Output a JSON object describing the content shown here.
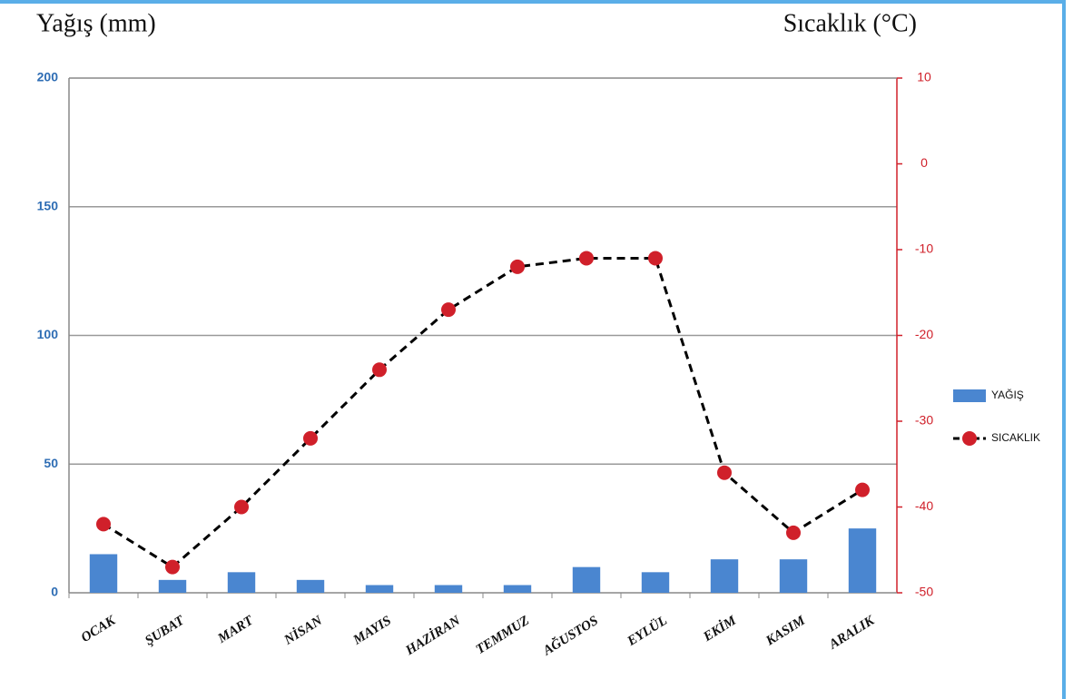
{
  "chart_data": {
    "type": "bar_line",
    "y_label": "Yağış (mm)",
    "y2_label": "Sıcaklık (°C)",
    "categories": [
      "OCAK",
      "ŞUBAT",
      "MART",
      "NİSAN",
      "MAYIS",
      "HAZİRAN",
      "TEMMUZ",
      "AĞUSTOS",
      "EYLÜL",
      "EKİM",
      "KASIM",
      "ARALIK"
    ],
    "series": [
      {
        "name": "YAĞIŞ",
        "type": "bar",
        "color": "#4a86d0",
        "values": [
          15,
          5,
          8,
          5,
          3,
          3,
          3,
          10,
          8,
          13,
          13,
          25
        ]
      },
      {
        "name": "SICAKLIK",
        "type": "line",
        "axis": "y2",
        "color": "#000000",
        "marker_color": "#d0202a",
        "values": [
          -42,
          -47,
          -40,
          -32,
          -24,
          -17,
          -12,
          -11,
          -11,
          -36,
          -43,
          -38
        ]
      }
    ],
    "ylim": [
      0,
      200
    ],
    "yticks": [
      0,
      50,
      100,
      150,
      200
    ],
    "y2lim": [
      -50,
      10
    ],
    "y2ticks": [
      -50,
      -40,
      -30,
      -20,
      -10,
      0,
      10
    ],
    "grid": true,
    "legend": "right"
  }
}
